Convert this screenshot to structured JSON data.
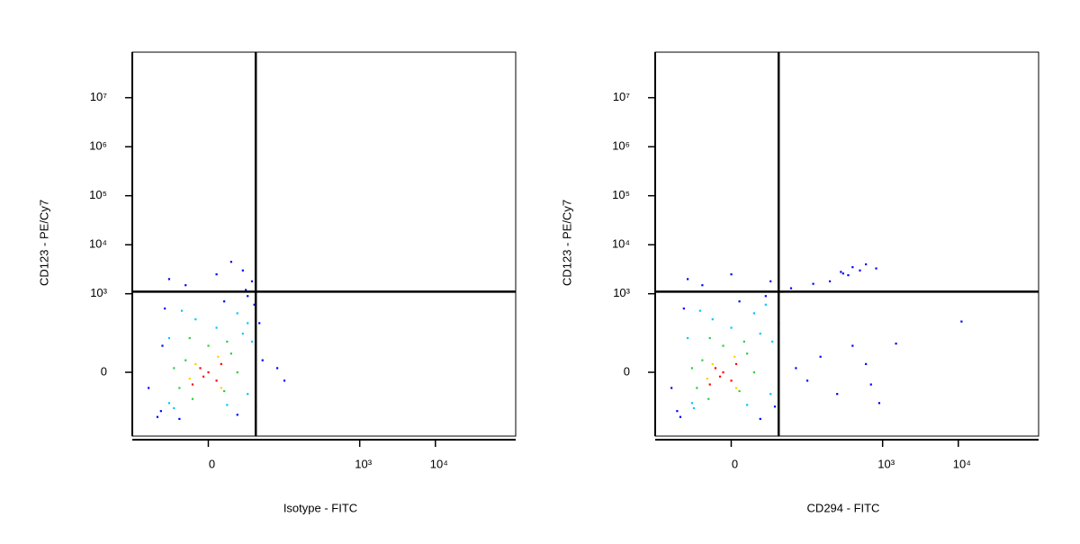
{
  "chart_data": [
    {
      "type": "scatter",
      "x_label": "Isotype - FITC",
      "y_label": "CD123 - PE/Cy7",
      "xlim": [
        -100,
        115000
      ],
      "ylim": [
        -500,
        85000000
      ],
      "xticks": [
        0,
        {
          "value": 1000,
          "label": "10³"
        },
        {
          "value": 10000,
          "label": "10⁴"
        }
      ],
      "yticks": [
        0,
        {
          "value": 1000,
          "label": "10³"
        },
        {
          "value": 10000,
          "label": "10⁴"
        },
        {
          "value": 100000,
          "label": "10⁵"
        },
        {
          "value": 1000000,
          "label": "10⁶"
        },
        {
          "value": 10000000,
          "label": "10⁷"
        }
      ],
      "quadrant": {
        "x": 40,
        "y": 1100
      },
      "series": [
        {
          "color": "#0000ff",
          "x": [
            -40,
            40,
            45,
            -35,
            10,
            30,
            -15,
            5,
            25,
            -30,
            35,
            15,
            80,
            100,
            -60,
            -45,
            50,
            20,
            -20,
            38,
            -38,
            28
          ],
          "y": [
            -150,
            -120,
            250,
            500,
            700,
            900,
            1500,
            2500,
            3000,
            2000,
            1800,
            4500,
            10,
            -20,
            -40,
            -200,
            30,
            -180,
            -220,
            600,
            80,
            1200
          ]
        },
        {
          "color": "#00c8ff",
          "x": [
            -30,
            25,
            30,
            -30,
            5,
            -8,
            20,
            35,
            -25,
            12,
            -18,
            30
          ],
          "y": [
            120,
            150,
            -60,
            -100,
            200,
            300,
            400,
            100,
            -130,
            -110,
            450,
            250
          ]
        },
        {
          "color": "#2ecc40",
          "x": [
            -15,
            10,
            -20,
            15,
            0,
            -10,
            20,
            -25,
            12,
            -12
          ],
          "y": [
            30,
            -50,
            -40,
            50,
            80,
            -80,
            0,
            10,
            100,
            120
          ]
        },
        {
          "color": "#ffd000",
          "x": [
            -8,
            8,
            -12,
            6
          ],
          "y": [
            20,
            -40,
            -15,
            40
          ]
        },
        {
          "color": "#ff0000",
          "x": [
            0,
            -5,
            5,
            -10,
            8,
            -3
          ],
          "y": [
            0,
            10,
            -20,
            -30,
            20,
            -10
          ]
        }
      ]
    },
    {
      "type": "scatter",
      "x_label": "CD294 - FITC",
      "y_label": "CD123 - PE/Cy7",
      "xlim": [
        -100,
        115000
      ],
      "ylim": [
        -500,
        85000000
      ],
      "xticks": [
        0,
        {
          "value": 1000,
          "label": "10³"
        },
        {
          "value": 10000,
          "label": "10⁴"
        }
      ],
      "yticks": [
        0,
        {
          "value": 1000,
          "label": "10³"
        },
        {
          "value": 10000,
          "label": "10⁴"
        },
        {
          "value": 100000,
          "label": "10⁵"
        },
        {
          "value": 1000000,
          "label": "10⁶"
        },
        {
          "value": 10000000,
          "label": "10⁷"
        }
      ],
      "quadrant": {
        "x": 40,
        "y": 1100
      },
      "series": [
        {
          "color": "#0000ff",
          "x": [
            -50,
            35,
            40,
            -40,
            5,
            25,
            -20,
            0,
            -35,
            30,
            70,
            100,
            150,
            250,
            400,
            600,
            900,
            1500,
            300,
            500,
            280,
            400,
            600,
            820,
            11000,
            -60,
            45,
            60,
            200,
            700,
            -45,
            20,
            120,
            350
          ],
          "y": [
            -150,
            -120,
            250,
            500,
            700,
            900,
            1500,
            2500,
            2000,
            1800,
            10,
            -20,
            40,
            -60,
            80,
            20,
            -100,
            90,
            2600,
            3000,
            2800,
            3500,
            4000,
            3300,
            270,
            -40,
            1100,
            1300,
            1800,
            -30,
            -200,
            -220,
            1600,
            2400
          ]
        },
        {
          "color": "#00c8ff",
          "x": [
            -35,
            20,
            30,
            -30,
            0,
            -12,
            15,
            32,
            -28,
            10,
            -22,
            25
          ],
          "y": [
            120,
            150,
            -60,
            -100,
            200,
            300,
            400,
            100,
            -130,
            -110,
            450,
            600
          ]
        },
        {
          "color": "#2ecc40",
          "x": [
            -20,
            5,
            -25,
            10,
            -5,
            -15,
            15,
            -30,
            8,
            -14
          ],
          "y": [
            30,
            -50,
            -40,
            50,
            80,
            -80,
            0,
            10,
            100,
            120
          ]
        },
        {
          "color": "#ffd000",
          "x": [
            -12,
            3,
            -16,
            2
          ],
          "y": [
            20,
            -40,
            -15,
            40
          ]
        },
        {
          "color": "#ff0000",
          "x": [
            -5,
            -10,
            0,
            -14,
            3,
            -7
          ],
          "y": [
            0,
            10,
            -20,
            -30,
            20,
            -10
          ]
        }
      ]
    }
  ]
}
